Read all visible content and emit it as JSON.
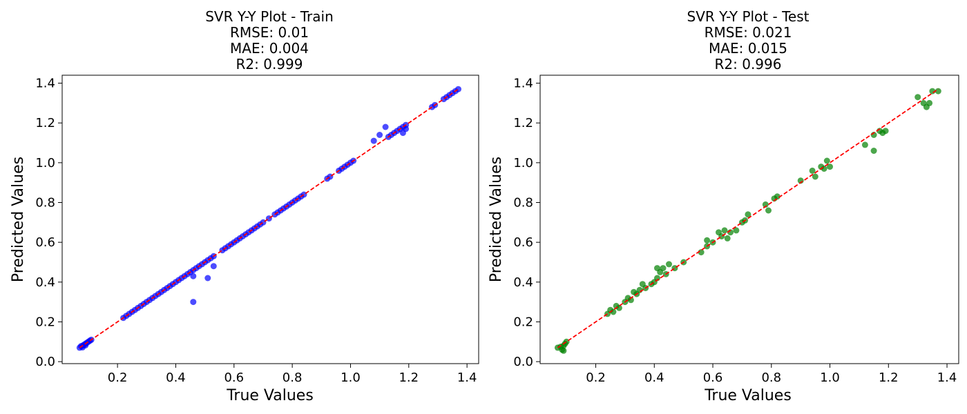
{
  "chart_data": [
    {
      "type": "scatter",
      "title_lines": [
        "SVR Y-Y Plot - Train",
        "RMSE: 0.01",
        "MAE: 0.004",
        "R2: 0.999"
      ],
      "xlabel": "True Values",
      "ylabel": "Predicted Values",
      "xlim": [
        0.01,
        1.44
      ],
      "ylim": [
        -0.01,
        1.44
      ],
      "xticks": [
        "0.2",
        "0.4",
        "0.6",
        "0.8",
        "1.0",
        "1.2",
        "1.4"
      ],
      "yticks": [
        "0.0",
        "0.2",
        "0.4",
        "0.6",
        "0.8",
        "1.0",
        "1.2",
        "1.4"
      ],
      "grid": false,
      "point_color": "#0000ff",
      "reference_line_color": "#ff0000",
      "reference_line": [
        [
          0.07,
          0.07
        ],
        [
          1.37,
          1.37
        ]
      ],
      "series": [
        {
          "points": [
            [
              0.07,
              0.07
            ],
            [
              0.075,
              0.078
            ],
            [
              0.08,
              0.08
            ],
            [
              0.085,
              0.085
            ],
            [
              0.09,
              0.09
            ],
            [
              0.095,
              0.095
            ],
            [
              0.1,
              0.1
            ],
            [
              0.105,
              0.105
            ],
            [
              0.11,
              0.11
            ],
            [
              0.08,
              0.072
            ],
            [
              0.09,
              0.082
            ],
            [
              0.22,
              0.22
            ],
            [
              0.23,
              0.23
            ],
            [
              0.24,
              0.24
            ],
            [
              0.25,
              0.25
            ],
            [
              0.26,
              0.26
            ],
            [
              0.27,
              0.27
            ],
            [
              0.28,
              0.28
            ],
            [
              0.29,
              0.29
            ],
            [
              0.3,
              0.3
            ],
            [
              0.31,
              0.31
            ],
            [
              0.32,
              0.32
            ],
            [
              0.33,
              0.33
            ],
            [
              0.34,
              0.34
            ],
            [
              0.35,
              0.35
            ],
            [
              0.36,
              0.36
            ],
            [
              0.37,
              0.37
            ],
            [
              0.38,
              0.38
            ],
            [
              0.39,
              0.39
            ],
            [
              0.4,
              0.4
            ],
            [
              0.41,
              0.41
            ],
            [
              0.42,
              0.42
            ],
            [
              0.43,
              0.43
            ],
            [
              0.44,
              0.44
            ],
            [
              0.45,
              0.45
            ],
            [
              0.46,
              0.46
            ],
            [
              0.47,
              0.47
            ],
            [
              0.48,
              0.48
            ],
            [
              0.49,
              0.49
            ],
            [
              0.5,
              0.5
            ],
            [
              0.51,
              0.51
            ],
            [
              0.52,
              0.52
            ],
            [
              0.53,
              0.53
            ],
            [
              0.46,
              0.3
            ],
            [
              0.51,
              0.42
            ],
            [
              0.53,
              0.48
            ],
            [
              0.46,
              0.43
            ],
            [
              0.56,
              0.56
            ],
            [
              0.57,
              0.57
            ],
            [
              0.58,
              0.58
            ],
            [
              0.59,
              0.59
            ],
            [
              0.6,
              0.6
            ],
            [
              0.61,
              0.61
            ],
            [
              0.62,
              0.62
            ],
            [
              0.63,
              0.63
            ],
            [
              0.64,
              0.64
            ],
            [
              0.65,
              0.65
            ],
            [
              0.66,
              0.66
            ],
            [
              0.67,
              0.67
            ],
            [
              0.68,
              0.68
            ],
            [
              0.69,
              0.69
            ],
            [
              0.7,
              0.7
            ],
            [
              0.72,
              0.72
            ],
            [
              0.74,
              0.74
            ],
            [
              0.75,
              0.75
            ],
            [
              0.76,
              0.76
            ],
            [
              0.77,
              0.77
            ],
            [
              0.78,
              0.78
            ],
            [
              0.79,
              0.79
            ],
            [
              0.8,
              0.8
            ],
            [
              0.81,
              0.81
            ],
            [
              0.82,
              0.82
            ],
            [
              0.83,
              0.83
            ],
            [
              0.84,
              0.84
            ],
            [
              0.92,
              0.92
            ],
            [
              0.93,
              0.93
            ],
            [
              0.96,
              0.96
            ],
            [
              0.97,
              0.97
            ],
            [
              0.98,
              0.98
            ],
            [
              0.99,
              0.99
            ],
            [
              1.0,
              1.0
            ],
            [
              1.01,
              1.01
            ],
            [
              1.08,
              1.11
            ],
            [
              1.1,
              1.14
            ],
            [
              1.12,
              1.18
            ],
            [
              1.13,
              1.13
            ],
            [
              1.14,
              1.14
            ],
            [
              1.15,
              1.15
            ],
            [
              1.16,
              1.16
            ],
            [
              1.17,
              1.17
            ],
            [
              1.18,
              1.18
            ],
            [
              1.19,
              1.19
            ],
            [
              1.19,
              1.17
            ],
            [
              1.18,
              1.15
            ],
            [
              1.28,
              1.28
            ],
            [
              1.29,
              1.29
            ],
            [
              1.32,
              1.32
            ],
            [
              1.33,
              1.33
            ],
            [
              1.34,
              1.34
            ],
            [
              1.35,
              1.35
            ],
            [
              1.36,
              1.36
            ],
            [
              1.37,
              1.37
            ]
          ]
        }
      ]
    },
    {
      "type": "scatter",
      "title_lines": [
        "SVR Y-Y Plot - Test",
        "RMSE: 0.021",
        "MAE: 0.015",
        "R2: 0.996"
      ],
      "xlabel": "True Values",
      "ylabel": "Predicted Values",
      "xlim": [
        0.01,
        1.44
      ],
      "ylim": [
        -0.01,
        1.44
      ],
      "xticks": [
        "0.2",
        "0.4",
        "0.6",
        "0.8",
        "1.0",
        "1.2",
        "1.4"
      ],
      "yticks": [
        "0.0",
        "0.2",
        "0.4",
        "0.6",
        "0.8",
        "1.0",
        "1.2",
        "1.4"
      ],
      "grid": false,
      "point_color": "#008000",
      "reference_line_color": "#ff0000",
      "reference_line": [
        [
          0.07,
          0.07
        ],
        [
          1.37,
          1.37
        ]
      ],
      "series": [
        {
          "points": [
            [
              0.07,
              0.07
            ],
            [
              0.08,
              0.075
            ],
            [
              0.085,
              0.06
            ],
            [
              0.09,
              0.08
            ],
            [
              0.1,
              0.1
            ],
            [
              0.09,
              0.055
            ],
            [
              0.095,
              0.09
            ],
            [
              0.24,
              0.24
            ],
            [
              0.25,
              0.26
            ],
            [
              0.26,
              0.25
            ],
            [
              0.27,
              0.28
            ],
            [
              0.28,
              0.27
            ],
            [
              0.3,
              0.3
            ],
            [
              0.31,
              0.32
            ],
            [
              0.32,
              0.31
            ],
            [
              0.33,
              0.35
            ],
            [
              0.34,
              0.34
            ],
            [
              0.35,
              0.36
            ],
            [
              0.36,
              0.39
            ],
            [
              0.37,
              0.37
            ],
            [
              0.39,
              0.39
            ],
            [
              0.4,
              0.4
            ],
            [
              0.41,
              0.42
            ],
            [
              0.42,
              0.45
            ],
            [
              0.43,
              0.47
            ],
            [
              0.44,
              0.44
            ],
            [
              0.45,
              0.49
            ],
            [
              0.47,
              0.47
            ],
            [
              0.5,
              0.5
            ],
            [
              0.41,
              0.47
            ],
            [
              0.56,
              0.55
            ],
            [
              0.58,
              0.58
            ],
            [
              0.58,
              0.61
            ],
            [
              0.6,
              0.6
            ],
            [
              0.62,
              0.65
            ],
            [
              0.63,
              0.63
            ],
            [
              0.64,
              0.66
            ],
            [
              0.65,
              0.62
            ],
            [
              0.66,
              0.65
            ],
            [
              0.68,
              0.66
            ],
            [
              0.7,
              0.7
            ],
            [
              0.71,
              0.71
            ],
            [
              0.72,
              0.74
            ],
            [
              0.78,
              0.79
            ],
            [
              0.79,
              0.76
            ],
            [
              0.81,
              0.82
            ],
            [
              0.82,
              0.83
            ],
            [
              0.9,
              0.91
            ],
            [
              0.94,
              0.96
            ],
            [
              0.95,
              0.93
            ],
            [
              0.97,
              0.98
            ],
            [
              0.98,
              0.97
            ],
            [
              0.99,
              1.01
            ],
            [
              1.0,
              0.98
            ],
            [
              1.12,
              1.09
            ],
            [
              1.15,
              1.06
            ],
            [
              1.15,
              1.14
            ],
            [
              1.17,
              1.16
            ],
            [
              1.18,
              1.15
            ],
            [
              1.19,
              1.16
            ],
            [
              1.3,
              1.33
            ],
            [
              1.32,
              1.3
            ],
            [
              1.33,
              1.28
            ],
            [
              1.34,
              1.3
            ],
            [
              1.35,
              1.36
            ],
            [
              1.37,
              1.36
            ]
          ]
        }
      ]
    }
  ]
}
